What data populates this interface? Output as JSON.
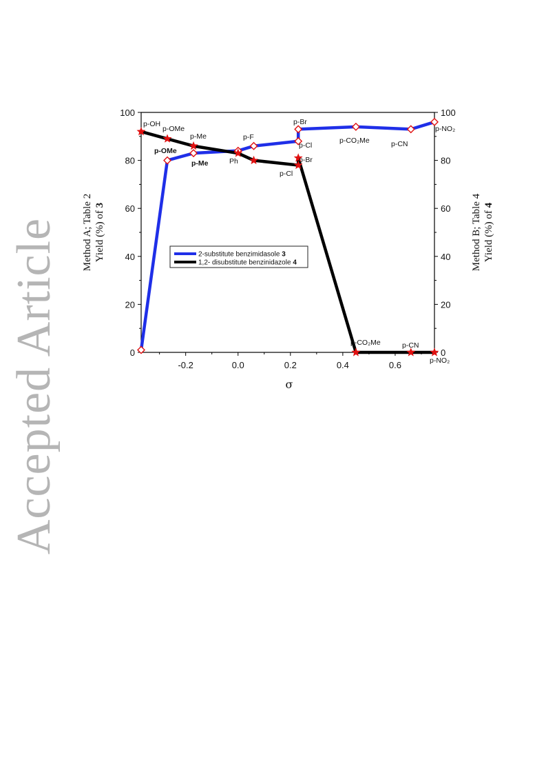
{
  "watermark": "Accepted Article",
  "chart_data": {
    "type": "line",
    "xlabel": "σ",
    "ylabel_left": [
      "Method A; Table 2",
      "Yield (%) of ",
      "3"
    ],
    "ylabel_right": [
      "Method B; Table 4",
      "Yield (%) of ",
      "4"
    ],
    "xlim": [
      -0.37,
      0.75
    ],
    "ylim": [
      0,
      100
    ],
    "x_ticks": [
      -0.2,
      0.0,
      0.2,
      0.4,
      0.6
    ],
    "x_tick_labels": [
      "-0.2",
      "0.0",
      "0.2",
      "0.4",
      "0.6"
    ],
    "y_ticks": [
      0,
      20,
      40,
      60,
      80,
      100
    ],
    "y_tick_labels": [
      "0",
      "20",
      "40",
      "60",
      "80",
      "100"
    ],
    "legend": {
      "position": "center-left"
    },
    "series": [
      {
        "name": "2-substitute benzimidasole ",
        "name_bold": "3",
        "color": "#1f2fe8",
        "marker": "diamond",
        "x": [
          -0.37,
          -0.27,
          -0.17,
          0.0,
          0.06,
          0.23,
          0.23,
          0.45,
          0.66,
          0.78
        ],
        "y": [
          1,
          80,
          83,
          84,
          86,
          88,
          93,
          94,
          93,
          96
        ]
      },
      {
        "name": "1,2- disubstitute benzinidazole ",
        "name_bold": "4",
        "color": "#000000",
        "marker": "star",
        "x": [
          -0.37,
          -0.27,
          -0.17,
          0.0,
          0.06,
          0.23,
          0.23,
          0.45,
          0.66,
          0.78
        ],
        "y": [
          92,
          89,
          86,
          83,
          80,
          78,
          81,
          0,
          0,
          0
        ]
      }
    ],
    "annotations": [
      {
        "text": "p-OH",
        "bold": false
      },
      {
        "text": "p-OMe",
        "bold": false
      },
      {
        "text": "p-Me",
        "bold": false
      },
      {
        "text": "p-F",
        "bold": false
      },
      {
        "text": "p-Br",
        "bold": false
      },
      {
        "text": "p-NO₂",
        "bold": false
      },
      {
        "text": "p-OMe",
        "bold": true
      },
      {
        "text": "p-Me",
        "bold": true
      },
      {
        "text": "Ph",
        "bold": false
      },
      {
        "text": "p-Cl",
        "bold": false
      },
      {
        "text": "p-CO₂Me",
        "bold": false
      },
      {
        "text": "p-CN",
        "bold": false
      },
      {
        "text": "p-Br",
        "bold": false
      },
      {
        "text": "p-Cl",
        "bold": false
      },
      {
        "text": "p-CO₂Me",
        "bold": false
      },
      {
        "text": "p-CN",
        "bold": false
      },
      {
        "text": "p-NO₂",
        "bold": false
      }
    ]
  }
}
